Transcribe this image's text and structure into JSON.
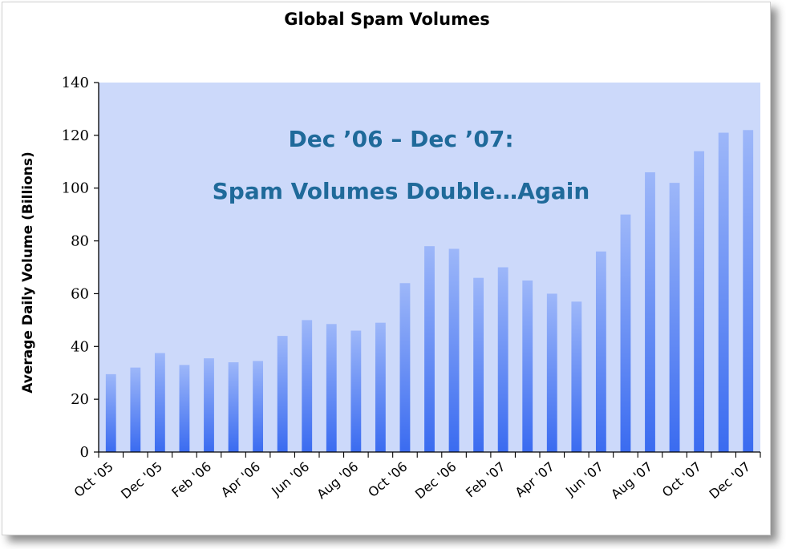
{
  "chart_data": {
    "type": "bar",
    "title": "Global Spam Volumes",
    "xlabel": "",
    "ylabel": "Average Daily Volume (Billions)",
    "ylim": [
      0,
      140
    ],
    "yticks": [
      0,
      20,
      40,
      60,
      80,
      100,
      120,
      140
    ],
    "grid": false,
    "categories": [
      "Oct '05",
      "Nov '05",
      "Dec '05",
      "Jan '06",
      "Feb '06",
      "Mar '06",
      "Apr '06",
      "May '06",
      "Jun '06",
      "Jul '06",
      "Aug '06",
      "Sep '06",
      "Oct '06",
      "Nov '06",
      "Dec '06",
      "Jan '07",
      "Feb '07",
      "Mar '07",
      "Apr '07",
      "May '07",
      "Jun '07",
      "Jul '07",
      "Aug '07",
      "Sep '07",
      "Oct '07",
      "Nov '07",
      "Dec '07"
    ],
    "tick_labels": [
      "Oct '05",
      "",
      "Dec '05",
      "",
      "Feb '06",
      "",
      "Apr '06",
      "",
      "Jun '06",
      "",
      "Aug '06",
      "",
      "Oct '06",
      "",
      "Dec '06",
      "",
      "Feb '07",
      "",
      "Apr '07",
      "",
      "Jun '07",
      "",
      "Aug '07",
      "",
      "Oct '07",
      "",
      "Dec '07"
    ],
    "values": [
      29.5,
      32,
      37.5,
      33,
      35.5,
      34,
      34.5,
      44,
      50,
      48.5,
      46,
      49,
      64,
      78,
      77,
      66,
      70,
      65,
      60,
      57,
      76,
      90,
      106,
      102,
      114,
      121,
      122
    ],
    "annotations": [
      "Dec ’06 – Dec ’07:",
      "Spam Volumes Double…Again"
    ],
    "colors": {
      "plot_bg": "#ccd9fa",
      "bar_top": "#9db7f9",
      "bar_bottom": "#3a6bf0",
      "annotation": "#1f6a9a"
    }
  }
}
